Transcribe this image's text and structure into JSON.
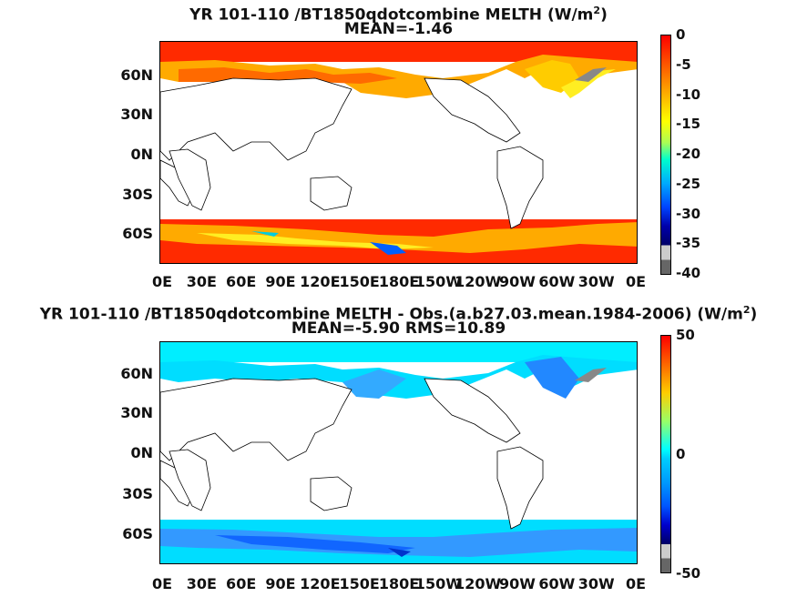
{
  "panel1": {
    "title_pre": "YR 101-110 /BT1850qdotcombine  MELTH (W/m",
    "title_sup": "2",
    "title_post": ")",
    "subtitle": "MEAN=-1.46",
    "colorbar_ticks": [
      "0",
      "-5",
      "-10",
      "-15",
      "-20",
      "-25",
      "-30",
      "-35",
      "-40"
    ]
  },
  "panel2": {
    "title_pre": "YR 101-110 /BT1850qdotcombine MELTH - Obs.(a.b27.03.mean.1984-2006) (W/m",
    "title_sup": "2",
    "title_post": ")",
    "subtitle": "MEAN=-5.90 RMS=10.89",
    "colorbar_ticks": [
      "50",
      "0",
      "-50"
    ]
  },
  "lat_labels": [
    "60N",
    "30N",
    "0N",
    "30S",
    "60S"
  ],
  "lon_labels": [
    "0E",
    "30E",
    "60E",
    "90E",
    "120E",
    "150E",
    "180E",
    "150W",
    "120W",
    "90W",
    "60W",
    "30W",
    "0E"
  ],
  "colors": {
    "panel1_ramp": [
      "#ff0000",
      "#ff5500",
      "#ffaa00",
      "#ffff00",
      "#aaff55",
      "#00ffcc",
      "#00aaff",
      "#0044ff",
      "#0000aa",
      "#000066",
      "#cccccc",
      "#666666"
    ],
    "panel2_ramp": [
      "#ff0000",
      "#ff6600",
      "#ffcc00",
      "#99ff66",
      "#00ffff",
      "#00ccff",
      "#0099ff",
      "#0055ff",
      "#0000cc",
      "#000066",
      "#cccccc",
      "#666666"
    ]
  }
}
